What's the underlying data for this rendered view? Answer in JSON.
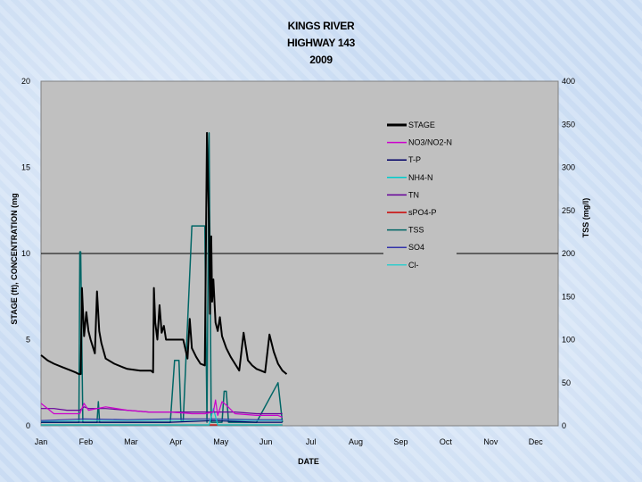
{
  "colors": {
    "plot_bg": "#c0c0c0",
    "STAGE": "#000000",
    "NO3/NO2-N": "#cc00cc",
    "T-P": "#000066",
    "NH4-N": "#00cccc",
    "TN": "#660099",
    "sPO4-P": "#cc0000",
    "TSS": "#006666",
    "SO4": "#3333aa",
    "Cl-": "#33cccc"
  },
  "chart_data": {
    "type": "line",
    "title": [
      "KINGS RIVER",
      "HIGHWAY 143",
      "2009"
    ],
    "xlabel": "DATE",
    "ylabel_left": "STAGE (ft), CONCENTRATION (mg",
    "ylabel_right": "TSS (mg/l)",
    "x_ticks": [
      "Jan",
      "Feb",
      "Mar",
      "Apr",
      "May",
      "Jun",
      "Jul",
      "Aug",
      "Sep",
      "Oct",
      "Nov",
      "Dec"
    ],
    "y_left_ticks": [
      "0",
      "5",
      "10",
      "15",
      "20"
    ],
    "y_right_ticks": [
      "0",
      "50",
      "100",
      "150",
      "200",
      "250",
      "300",
      "350",
      "400"
    ],
    "ylim_left": [
      0,
      20
    ],
    "ylim_right": [
      0,
      400
    ],
    "xlim_months": [
      0,
      12
    ],
    "grid": "horizontal line at 10",
    "legend_position": "upper-right",
    "legend": [
      "STAGE",
      "NO3/NO2-N",
      "T-P",
      "NH4-N",
      "TN",
      "sPO4-P",
      "TSS",
      "SO4",
      "Cl-"
    ],
    "series": [
      {
        "name": "STAGE",
        "axis": "left",
        "x": [
          0,
          0.15,
          0.3,
          0.5,
          0.7,
          0.8,
          0.88,
          0.92,
          0.95,
          1.0,
          1.05,
          1.1,
          1.15,
          1.25,
          1.3,
          1.35,
          1.4,
          1.5,
          1.7,
          1.9,
          2.0,
          2.3,
          2.55,
          2.6,
          2.62,
          2.65,
          2.7,
          2.75,
          2.8,
          2.85,
          2.9,
          3.0,
          3.1,
          3.2,
          3.3,
          3.4,
          3.45,
          3.5,
          3.6,
          3.7,
          3.8,
          3.85,
          3.9,
          3.92,
          3.95,
          3.97,
          4.0,
          4.05,
          4.1,
          4.15,
          4.2,
          4.3,
          4.4,
          4.5,
          4.6,
          4.7,
          4.8,
          4.9,
          5.0,
          5.1,
          5.2,
          5.3,
          5.4,
          5.5,
          5.6,
          5.7
        ],
        "values": [
          4.1,
          3.8,
          3.6,
          3.4,
          3.2,
          3.1,
          3.0,
          3.0,
          8.0,
          5.2,
          6.6,
          5.5,
          5.0,
          4.2,
          7.8,
          5.5,
          4.8,
          3.9,
          3.6,
          3.4,
          3.3,
          3.2,
          3.2,
          3.1,
          8.0,
          6.0,
          5.0,
          7.0,
          5.4,
          5.8,
          5.0,
          5.0,
          5.0,
          5.0,
          5.0,
          3.9,
          6.2,
          4.5,
          4.0,
          3.6,
          3.5,
          17.0,
          11.5,
          6.5,
          11.0,
          7.2,
          8.5,
          6.0,
          5.5,
          6.3,
          5.2,
          4.5,
          4.0,
          3.6,
          3.2,
          5.4,
          3.8,
          3.5,
          3.3,
          3.2,
          3.1,
          5.3,
          4.3,
          3.6,
          3.2,
          3.0
        ]
      },
      {
        "name": "TSS",
        "axis": "right",
        "x": [
          0,
          0.85,
          0.88,
          0.9,
          0.92,
          0.97,
          1.0,
          1.3,
          1.33,
          1.36,
          3.0,
          3.1,
          3.2,
          3.22,
          3.25,
          3.3,
          3.5,
          3.8,
          3.85,
          3.9,
          3.95,
          4.0,
          4.2,
          4.25,
          4.3,
          4.35,
          4.5,
          4.9,
          5.0,
          5.5,
          5.6
        ],
        "values": [
          4,
          4,
          4,
          202,
          202,
          4,
          4,
          4,
          28,
          4,
          4,
          76,
          76,
          50,
          6,
          6,
          232,
          232,
          4,
          340,
          4,
          4,
          4,
          40,
          40,
          4,
          4,
          4,
          4,
          50,
          4
        ]
      },
      {
        "name": "NO3/NO2-N",
        "axis": "left",
        "x": [
          0,
          0.3,
          0.6,
          0.9,
          1.0,
          1.1,
          1.5,
          2.0,
          2.5,
          3.0,
          3.5,
          3.8,
          4.0,
          4.05,
          4.1,
          4.2,
          4.3,
          4.5,
          5.0,
          5.5,
          5.6
        ],
        "values": [
          1.3,
          0.7,
          0.7,
          0.7,
          1.3,
          0.9,
          1.1,
          0.9,
          0.8,
          0.8,
          0.7,
          0.7,
          0.8,
          1.5,
          0.6,
          1.4,
          1.2,
          0.7,
          0.6,
          0.6,
          0.5
        ]
      },
      {
        "name": "TN",
        "axis": "left",
        "x": [
          0,
          0.3,
          0.6,
          0.9,
          1.0,
          1.1,
          1.5,
          2.0,
          2.5,
          3.0,
          3.5,
          4.0,
          4.5,
          5.0,
          5.5,
          5.6
        ],
        "values": [
          1.0,
          1.0,
          0.9,
          0.9,
          1.1,
          1.0,
          1.0,
          0.9,
          0.8,
          0.8,
          0.8,
          0.8,
          0.8,
          0.7,
          0.7,
          0.7
        ]
      },
      {
        "name": "T-P",
        "axis": "left",
        "x": [
          0,
          1.0,
          2.0,
          3.0,
          4.0,
          5.0,
          5.6
        ],
        "values": [
          0.2,
          0.2,
          0.2,
          0.2,
          0.3,
          0.2,
          0.2
        ]
      },
      {
        "name": "NH4-N",
        "axis": "left",
        "x": [
          0,
          1.0,
          2.0,
          3.0,
          3.9,
          4.0,
          4.1,
          5.0,
          5.6
        ],
        "values": [
          0.05,
          0.05,
          0.05,
          0.05,
          0.05,
          1.0,
          0.05,
          0.05,
          0.05
        ]
      },
      {
        "name": "sPO4-P",
        "axis": "left",
        "x": [
          0,
          1.0,
          2.0,
          3.0,
          4.0,
          5.0,
          5.6
        ],
        "values": [
          0.05,
          0.05,
          0.05,
          0.05,
          0.05,
          0.05,
          0.05
        ]
      },
      {
        "name": "SO4",
        "axis": "left",
        "x": [
          0,
          1.0,
          2.0,
          3.0,
          4.0,
          5.0,
          5.6
        ],
        "values": [
          0.3,
          0.4,
          0.35,
          0.4,
          0.4,
          0.35,
          0.35
        ]
      },
      {
        "name": "Cl-",
        "axis": "left",
        "x": [
          0,
          1.0,
          2.0,
          3.0,
          4.0,
          5.0,
          5.6
        ],
        "values": [
          0.25,
          0.3,
          0.3,
          0.3,
          0.3,
          0.3,
          0.3
        ]
      }
    ]
  }
}
